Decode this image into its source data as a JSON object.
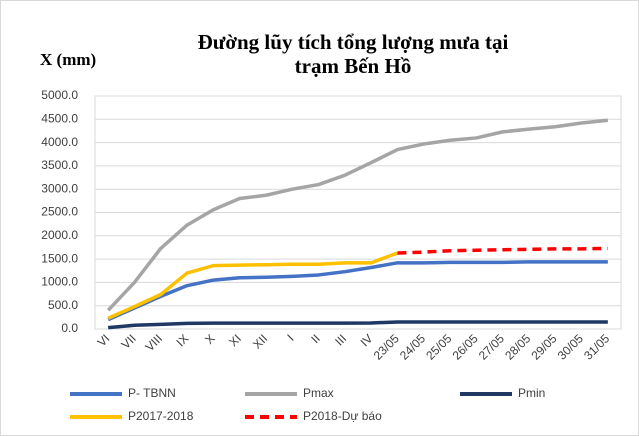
{
  "chart_data": {
    "type": "line",
    "title": "Đường lũy tích tổng lượng mưa tại trạm Bến Hồ",
    "y_label": "X (mm)",
    "categories": [
      "VI",
      "VII",
      "VIII",
      "IX",
      "X",
      "XI",
      "XII",
      "I",
      "II",
      "III",
      "IV",
      "23/05",
      "24/05",
      "25/05",
      "26/05",
      "27/05",
      "28/05",
      "29/05",
      "30/05",
      "31/05"
    ],
    "series": [
      {
        "name": "P- TBNN",
        "color": "#4472c4",
        "values": [
          200,
          450,
          700,
          930,
          1050,
          1100,
          1110,
          1130,
          1160,
          1230,
          1320,
          1420,
          1420,
          1430,
          1430,
          1430,
          1440,
          1440,
          1440,
          1440
        ]
      },
      {
        "name": "Pmax",
        "color": "#a5a5a5",
        "values": [
          400,
          1000,
          1730,
          2230,
          2560,
          2800,
          2870,
          3000,
          3100,
          3300,
          3570,
          3850,
          3970,
          4050,
          4100,
          4230,
          4290,
          4340,
          4420,
          4480
        ]
      },
      {
        "name": "Pmin",
        "color": "#1f3864",
        "values": [
          30,
          80,
          100,
          120,
          125,
          125,
          125,
          125,
          125,
          125,
          130,
          150,
          150,
          150,
          150,
          150,
          150,
          150,
          150,
          150
        ]
      },
      {
        "name": "P2017-2018",
        "color": "#ffc000",
        "values": [
          230,
          480,
          740,
          1200,
          1360,
          1370,
          1380,
          1390,
          1390,
          1420,
          1420,
          1630,
          null,
          null,
          null,
          null,
          null,
          null,
          null,
          null
        ]
      },
      {
        "name": "P2018-Dự báo",
        "color": "#ff0000",
        "dashed": true,
        "values": [
          null,
          null,
          null,
          null,
          null,
          null,
          null,
          null,
          null,
          null,
          null,
          1630,
          1650,
          1680,
          1690,
          1700,
          1710,
          1720,
          1720,
          1730
        ]
      }
    ],
    "ylim": [
      0,
      5000
    ],
    "yticks": [
      {
        "value": 0,
        "label": "0.0"
      },
      {
        "value": 500,
        "label": "500.0"
      },
      {
        "value": 1000,
        "label": "1000.0"
      },
      {
        "value": 1500,
        "label": "1500.0"
      },
      {
        "value": 2000,
        "label": "2000.0"
      },
      {
        "value": 2500,
        "label": "2500.0"
      },
      {
        "value": 3000,
        "label": "3000.0"
      },
      {
        "value": 3500,
        "label": "3500.0"
      },
      {
        "value": 4000,
        "label": "4000.0"
      },
      {
        "value": 4500,
        "label": "4500.0"
      },
      {
        "value": 5000,
        "label": "5000.0"
      }
    ],
    "grid": true,
    "legend": "bottom"
  }
}
